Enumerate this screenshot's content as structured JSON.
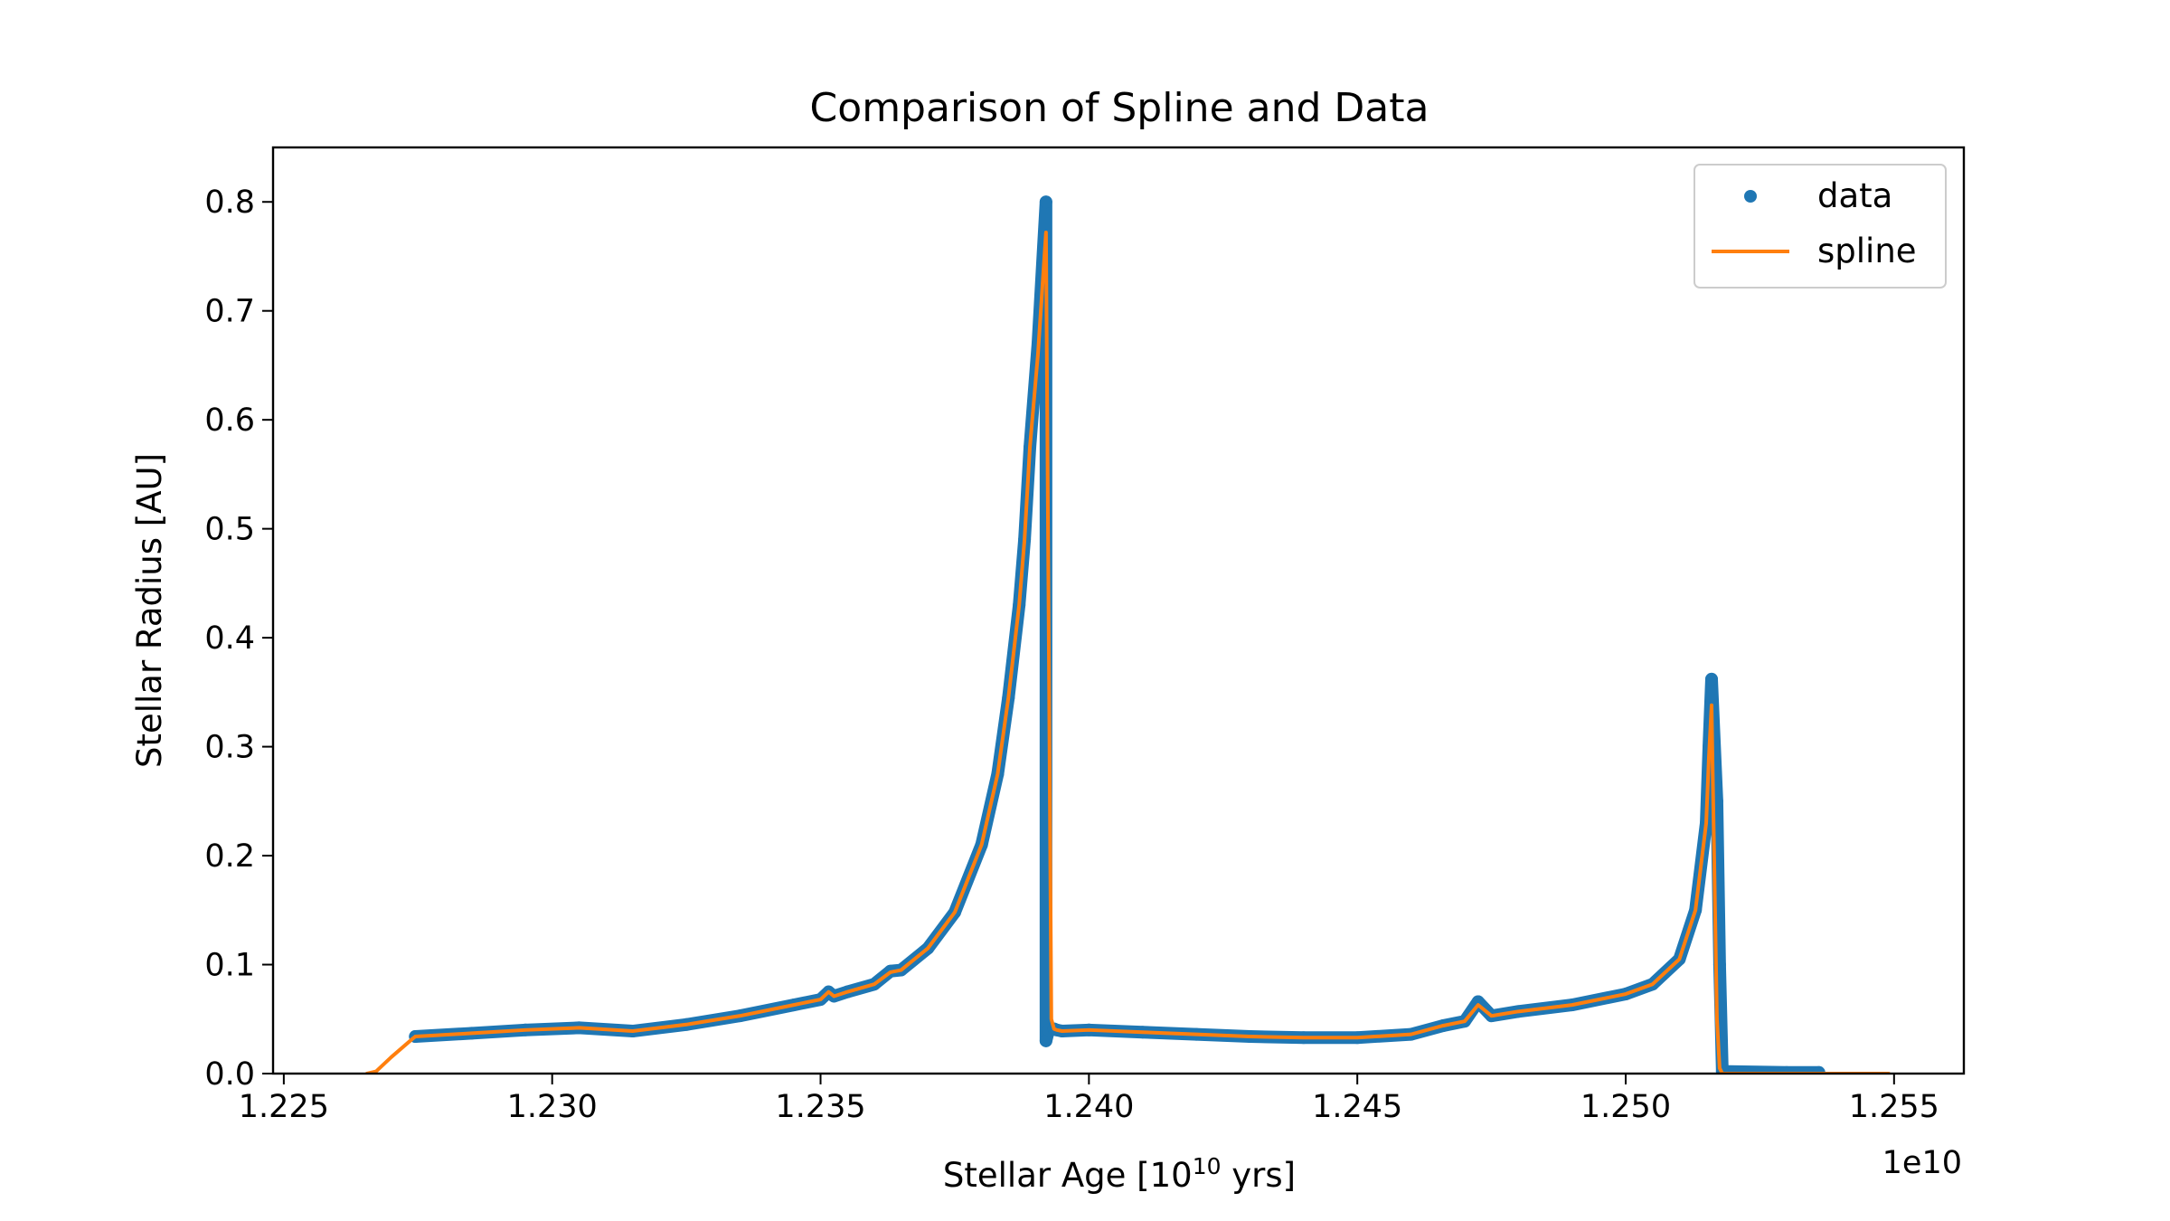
{
  "colors": {
    "data": "#1f77b4",
    "spline": "#ff7f0e",
    "axes": "#000000",
    "legend_border": "#cccccc"
  },
  "chart_data": {
    "type": "line",
    "title": "Comparison of Spline and Data",
    "xlabel_prefix": "Stellar Age [10",
    "xlabel_sup": "10",
    "xlabel_suffix": " yrs]",
    "ylabel": "Stellar Radius [AU]",
    "x_offset_label": "1e10",
    "xlim": [
      1.2248,
      1.2563
    ],
    "ylim": [
      0.0,
      0.85
    ],
    "x_ticks": [
      1.225,
      1.23,
      1.235,
      1.24,
      1.245,
      1.25,
      1.255
    ],
    "x_tick_labels": [
      "1.225",
      "1.230",
      "1.235",
      "1.240",
      "1.245",
      "1.250",
      "1.255"
    ],
    "y_ticks": [
      0.0,
      0.1,
      0.2,
      0.3,
      0.4,
      0.5,
      0.6,
      0.7,
      0.8
    ],
    "y_tick_labels": [
      "0.0",
      "0.1",
      "0.2",
      "0.3",
      "0.4",
      "0.5",
      "0.6",
      "0.7",
      "0.8"
    ],
    "grid": false,
    "legend_position": "top-right",
    "series": [
      {
        "name": "data",
        "style": "markers",
        "x": [
          1.22745,
          1.2285,
          1.2295,
          1.2305,
          1.2315,
          1.2325,
          1.2335,
          1.2345,
          1.235,
          1.23515,
          1.23525,
          1.2355,
          1.236,
          1.2363,
          1.2365,
          1.237,
          1.2375,
          1.238,
          1.2383,
          1.2385,
          1.2387,
          1.2388,
          1.2389,
          1.23905,
          1.2392,
          1.2392,
          1.23925,
          1.23935,
          1.2394,
          1.2395,
          1.24,
          1.241,
          1.242,
          1.243,
          1.244,
          1.245,
          1.246,
          1.2466,
          1.247,
          1.24725,
          1.2475,
          1.248,
          1.249,
          1.25,
          1.2505,
          1.251,
          1.2513,
          1.2515,
          1.25155,
          1.2516,
          1.2517,
          1.25175,
          1.2518,
          1.253,
          1.2536
        ],
        "y": [
          0.034,
          0.037,
          0.04,
          0.042,
          0.039,
          0.045,
          0.053,
          0.063,
          0.068,
          0.075,
          0.071,
          0.075,
          0.082,
          0.094,
          0.095,
          0.115,
          0.148,
          0.21,
          0.275,
          0.345,
          0.43,
          0.49,
          0.575,
          0.67,
          0.8,
          0.03,
          0.04,
          0.041,
          0.04,
          0.039,
          0.04,
          0.038,
          0.036,
          0.034,
          0.033,
          0.033,
          0.036,
          0.044,
          0.048,
          0.066,
          0.053,
          0.057,
          0.063,
          0.073,
          0.082,
          0.105,
          0.15,
          0.23,
          0.3,
          0.362,
          0.25,
          0.1,
          0.002,
          0.001,
          0.001
        ]
      },
      {
        "name": "spline",
        "style": "line",
        "x": [
          1.22655,
          1.22672,
          1.227,
          1.2274,
          1.22745,
          1.2285,
          1.2295,
          1.2305,
          1.2315,
          1.2325,
          1.2335,
          1.2345,
          1.235,
          1.23515,
          1.23525,
          1.2355,
          1.236,
          1.2363,
          1.2365,
          1.237,
          1.2375,
          1.238,
          1.2383,
          1.2385,
          1.2387,
          1.2388,
          1.2389,
          1.23905,
          1.2392,
          1.2393,
          1.23935,
          1.2394,
          1.2395,
          1.24,
          1.241,
          1.242,
          1.243,
          1.244,
          1.245,
          1.246,
          1.2466,
          1.247,
          1.24725,
          1.2475,
          1.248,
          1.249,
          1.25,
          1.2505,
          1.251,
          1.2513,
          1.2515,
          1.25155,
          1.2516,
          1.2517,
          1.25175,
          1.2518,
          1.253,
          1.2549
        ],
        "y": [
          0.0,
          0.002,
          0.015,
          0.032,
          0.034,
          0.037,
          0.04,
          0.042,
          0.039,
          0.045,
          0.053,
          0.063,
          0.068,
          0.075,
          0.071,
          0.075,
          0.082,
          0.093,
          0.095,
          0.115,
          0.148,
          0.21,
          0.275,
          0.345,
          0.43,
          0.49,
          0.575,
          0.66,
          0.772,
          0.05,
          0.041,
          0.04,
          0.039,
          0.04,
          0.038,
          0.036,
          0.034,
          0.033,
          0.033,
          0.036,
          0.044,
          0.048,
          0.063,
          0.053,
          0.057,
          0.063,
          0.073,
          0.082,
          0.105,
          0.15,
          0.23,
          0.29,
          0.338,
          0.05,
          0.005,
          0.0,
          0.0,
          0.0
        ]
      }
    ]
  }
}
